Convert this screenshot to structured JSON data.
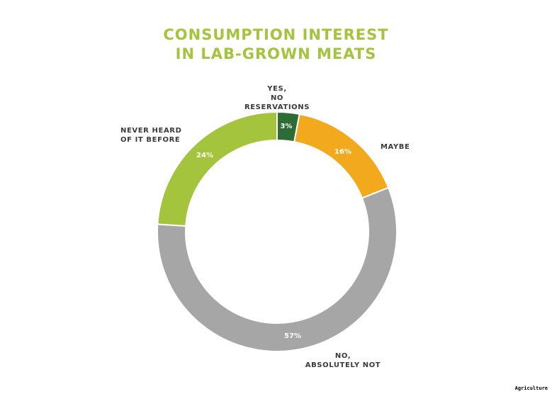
{
  "title_line1": "CONSUMPTION INTEREST",
  "title_line2": "IN LAB-GROWN MEATS",
  "footer": "Agriculture",
  "labels": {
    "yes_line1": "YES,",
    "yes_line2": "NO RESERVATIONS",
    "maybe": "MAYBE",
    "no_line1": "NO,",
    "no_line2": "ABSOLUTELY NOT",
    "never_line1": "NEVER HEARD",
    "never_line2": "OF IT BEFORE"
  },
  "pct_labels": {
    "yes": "3%",
    "maybe": "16%",
    "no": "57%",
    "never": "24%"
  },
  "colors": {
    "title": "#a3c43c",
    "yes": "#2e6b35",
    "maybe": "#f2a91e",
    "no": "#a6a6a6",
    "never": "#a3c43c"
  },
  "chart_data": {
    "type": "pie",
    "variant": "donut",
    "title": "CONSUMPTION INTEREST IN LAB-GROWN MEATS",
    "categories": [
      "Yes, no reservations",
      "Maybe",
      "No, absolutely not",
      "Never heard of it before"
    ],
    "values": [
      3,
      16,
      57,
      24
    ],
    "unit": "%",
    "colors": [
      "#2e6b35",
      "#f2a91e",
      "#a6a6a6",
      "#a3c43c"
    ],
    "start_angle": "12 o'clock",
    "direction": "clockwise",
    "legend": "none (direct labels)"
  }
}
